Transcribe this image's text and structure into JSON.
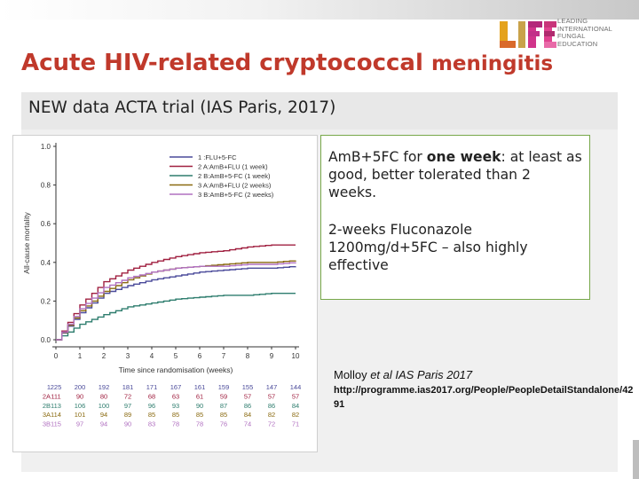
{
  "slide": {
    "title_main": "Acute HIV-related cryptococcal ",
    "title_end": "meningitis",
    "subtitle": "NEW data ACTA trial (IAS Paris, 2017)"
  },
  "logo": {
    "mark": "LIFE",
    "lines": [
      "LEADING",
      "INTERNATIONAL",
      "FUNGAL",
      "EDUCATION"
    ]
  },
  "callout": {
    "p1_prefix": "AmB+5FC for ",
    "p1_bold": "one week",
    "p1_suffix": ": at least as good, better tolerated than 2 weeks.",
    "p2": "2-weeks Fluconazole 1200mg/d+5FC – also highly effective"
  },
  "reference": {
    "author": "Molloy",
    "etal": "et al",
    "venue": " IAS Paris 2017",
    "url": "http://programme.ias2017.org/People/PeopleDetailStandalone/4291"
  },
  "chart_data": {
    "type": "line",
    "ylabel": "All-cause mortality",
    "xlabel": "Time since randomisation (weeks)",
    "ylim": [
      0,
      1
    ],
    "xlim": [
      0,
      10
    ],
    "yticks": [
      "0.0",
      "0.2",
      "0.4",
      "0.6",
      "0.8",
      "1.0"
    ],
    "xticks": [
      "0",
      "1",
      "2",
      "3",
      "4",
      "5",
      "6",
      "7",
      "8",
      "9",
      "10"
    ],
    "legend_position": "top-right",
    "series": [
      {
        "name": "1   :FLU+5-FC",
        "label": "1",
        "color": "#4a4a9a",
        "x": [
          0,
          1,
          2,
          3,
          4,
          5,
          6,
          7,
          8,
          9,
          10
        ],
        "values": [
          0,
          0.14,
          0.24,
          0.28,
          0.31,
          0.33,
          0.35,
          0.36,
          0.37,
          0.37,
          0.38
        ]
      },
      {
        "name": "2 A:AmB+FLU (1 week)",
        "label": "2A",
        "color": "#a02040",
        "x": [
          0,
          1,
          2,
          3,
          4,
          5,
          6,
          7,
          8,
          9,
          10
        ],
        "values": [
          0,
          0.18,
          0.3,
          0.36,
          0.4,
          0.43,
          0.45,
          0.46,
          0.48,
          0.49,
          0.49
        ]
      },
      {
        "name": "2 B:AmB+5-FC (1 week)",
        "label": "2B",
        "color": "#2e7d6e",
        "x": [
          0,
          1,
          2,
          3,
          4,
          5,
          6,
          7,
          8,
          9,
          10
        ],
        "values": [
          0,
          0.08,
          0.13,
          0.17,
          0.19,
          0.21,
          0.22,
          0.23,
          0.23,
          0.24,
          0.24
        ]
      },
      {
        "name": "3 A:AmB+FLU (2 weeks)",
        "label": "3A",
        "color": "#8a6a10",
        "x": [
          0,
          1,
          2,
          3,
          4,
          5,
          6,
          7,
          8,
          9,
          10
        ],
        "values": [
          0,
          0.15,
          0.25,
          0.31,
          0.35,
          0.37,
          0.38,
          0.39,
          0.4,
          0.4,
          0.41
        ]
      },
      {
        "name": "3 B:AmB+5-FC (2 weeks)",
        "label": "3B",
        "color": "#b070c0",
        "x": [
          0,
          1,
          2,
          3,
          4,
          5,
          6,
          7,
          8,
          9,
          10
        ],
        "values": [
          0,
          0.16,
          0.27,
          0.32,
          0.35,
          0.37,
          0.38,
          0.38,
          0.39,
          0.39,
          0.4
        ]
      }
    ],
    "risk_table": [
      {
        "label": "1",
        "values": [
          "225",
          "200",
          "192",
          "181",
          "171",
          "167",
          "161",
          "159",
          "155",
          "147",
          "144"
        ]
      },
      {
        "label": "2A",
        "values": [
          "111",
          "90",
          "80",
          "72",
          "68",
          "63",
          "61",
          "59",
          "57",
          "57",
          "57"
        ]
      },
      {
        "label": "2B",
        "values": [
          "113",
          "106",
          "100",
          "97",
          "96",
          "93",
          "90",
          "87",
          "86",
          "86",
          "84"
        ]
      },
      {
        "label": "3A",
        "values": [
          "114",
          "101",
          "94",
          "89",
          "85",
          "85",
          "85",
          "85",
          "84",
          "82",
          "82"
        ]
      },
      {
        "label": "3B",
        "values": [
          "115",
          "97",
          "94",
          "90",
          "83",
          "78",
          "78",
          "76",
          "74",
          "72",
          "71"
        ]
      }
    ]
  }
}
